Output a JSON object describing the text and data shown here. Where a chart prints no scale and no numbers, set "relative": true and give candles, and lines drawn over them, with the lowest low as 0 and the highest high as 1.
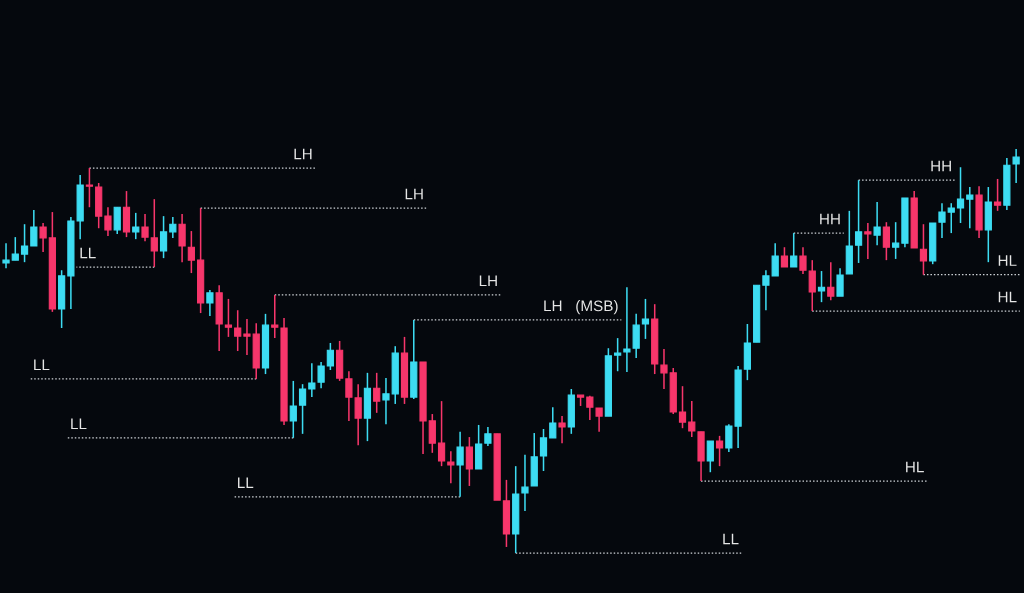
{
  "chart_data": {
    "type": "candlestick",
    "relative": true,
    "categories": [
      null,
      null,
      null,
      null,
      null,
      null,
      null,
      null,
      null,
      null,
      null,
      null,
      null,
      null,
      null,
      null,
      null,
      null,
      null,
      null,
      null,
      null,
      null,
      null,
      null,
      null,
      null,
      null,
      null,
      null,
      null,
      null,
      null,
      null,
      null,
      null,
      null,
      null,
      null,
      null,
      null,
      null,
      null,
      null,
      null,
      null,
      null,
      null,
      null,
      null,
      null,
      null,
      null,
      null,
      null,
      null,
      null,
      null,
      null,
      null,
      null,
      null,
      null,
      null,
      null,
      null,
      null,
      null,
      null,
      null,
      null,
      null,
      null,
      null,
      null,
      null,
      null,
      null,
      null,
      null,
      null,
      null,
      null,
      null,
      null,
      null,
      null,
      null,
      null,
      null,
      null,
      null,
      null,
      null,
      null,
      null,
      null,
      null,
      null,
      null,
      null,
      null,
      null,
      null,
      null,
      null,
      null,
      null,
      null,
      null
    ],
    "ohlc": [
      [
        0.718,
        0.767,
        0.705,
        0.725
      ],
      [
        0.725,
        0.782,
        0.725,
        0.74
      ],
      [
        0.74,
        0.814,
        0.72,
        0.76
      ],
      [
        0.76,
        0.849,
        0.76,
        0.807
      ],
      [
        0.807,
        0.817,
        0.745,
        0.78
      ],
      [
        0.78,
        0.844,
        0.597,
        0.604
      ],
      [
        0.604,
        0.7,
        0.557,
        0.686
      ],
      [
        0.686,
        0.832,
        0.604,
        0.822
      ],
      [
        0.822,
        0.936,
        0.777,
        0.911
      ],
      [
        0.911,
        0.953,
        0.856,
        0.908
      ],
      [
        0.906,
        0.916,
        0.804,
        0.834
      ],
      [
        0.834,
        0.856,
        0.785,
        0.8
      ],
      [
        0.8,
        0.856,
        0.79,
        0.856
      ],
      [
        0.856,
        0.896,
        0.782,
        0.795
      ],
      [
        0.795,
        0.842,
        0.777,
        0.807
      ],
      [
        0.807,
        0.839,
        0.772,
        0.782
      ],
      [
        0.78,
        0.876,
        0.708,
        0.748
      ],
      [
        0.748,
        0.834,
        0.73,
        0.795
      ],
      [
        0.795,
        0.832,
        0.78,
        0.814
      ],
      [
        0.814,
        0.839,
        0.72,
        0.76
      ],
      [
        0.757,
        0.797,
        0.693,
        0.725
      ],
      [
        0.725,
        0.854,
        0.594,
        0.619
      ],
      [
        0.619,
        0.651,
        0.587,
        0.644
      ],
      [
        0.644,
        0.663,
        0.5,
        0.567
      ],
      [
        0.564,
        0.629,
        0.535,
        0.559
      ],
      [
        0.557,
        0.601,
        0.5,
        0.537
      ],
      [
        0.542,
        0.579,
        0.49,
        0.537
      ],
      [
        0.542,
        0.569,
        0.431,
        0.458
      ],
      [
        0.458,
        0.592,
        0.443,
        0.564
      ],
      [
        0.564,
        0.639,
        0.532,
        0.559
      ],
      [
        0.557,
        0.582,
        0.317,
        0.327
      ],
      [
        0.327,
        0.426,
        0.285,
        0.364
      ],
      [
        0.366,
        0.418,
        0.295,
        0.406
      ],
      [
        0.406,
        0.47,
        0.386,
        0.421
      ],
      [
        0.423,
        0.473,
        0.408,
        0.463
      ],
      [
        0.463,
        0.52,
        0.453,
        0.502
      ],
      [
        0.502,
        0.525,
        0.426,
        0.433
      ],
      [
        0.431,
        0.45,
        0.327,
        0.386
      ],
      [
        0.384,
        0.418,
        0.267,
        0.334
      ],
      [
        0.334,
        0.446,
        0.277,
        0.408
      ],
      [
        0.408,
        0.446,
        0.347,
        0.376
      ],
      [
        0.379,
        0.433,
        0.319,
        0.394
      ],
      [
        0.394,
        0.512,
        0.369,
        0.495
      ],
      [
        0.495,
        0.535,
        0.369,
        0.386
      ],
      [
        0.386,
        0.577,
        0.381,
        0.473
      ],
      [
        0.473,
        0.473,
        0.245,
        0.327
      ],
      [
        0.327,
        0.344,
        0.248,
        0.272
      ],
      [
        0.272,
        0.376,
        0.215,
        0.228
      ],
      [
        0.225,
        0.252,
        0.173,
        0.218
      ],
      [
        0.218,
        0.3,
        0.139,
        0.262
      ],
      [
        0.262,
        0.287,
        0.166,
        0.208
      ],
      [
        0.208,
        0.317,
        0.208,
        0.27
      ],
      [
        0.272,
        0.312,
        0.265,
        0.295
      ],
      [
        0.295,
        0.295,
        0.131,
        0.131
      ],
      [
        0.129,
        0.181,
        0.015,
        0.047
      ],
      [
        0.047,
        0.215,
        0,
        0.146
      ],
      [
        0.149,
        0.243,
        0.104,
        0.163
      ],
      [
        0.166,
        0.297,
        0.166,
        0.238
      ],
      [
        0.24,
        0.307,
        0.203,
        0.285
      ],
      [
        0.285,
        0.361,
        0.285,
        0.322
      ],
      [
        0.322,
        0.339,
        0.272,
        0.312
      ],
      [
        0.312,
        0.406,
        0.295,
        0.391
      ],
      [
        0.391,
        0.391,
        0.364,
        0.386
      ],
      [
        0.386,
        0.389,
        0.329,
        0.361
      ],
      [
        0.359,
        0.359,
        0.3,
        0.339
      ],
      [
        0.339,
        0.507,
        0.339,
        0.488
      ],
      [
        0.49,
        0.532,
        0.45,
        0.495
      ],
      [
        0.498,
        0.658,
        0.448,
        0.505
      ],
      [
        0.507,
        0.592,
        0.483,
        0.564
      ],
      [
        0.567,
        0.629,
        0.53,
        0.579
      ],
      [
        0.579,
        0.616,
        0.443,
        0.468
      ],
      [
        0.465,
        0.505,
        0.406,
        0.446
      ],
      [
        0.446,
        0.458,
        0.344,
        0.349
      ],
      [
        0.349,
        0.413,
        0.309,
        0.324
      ],
      [
        0.324,
        0.376,
        0.287,
        0.302
      ],
      [
        0.3,
        0.3,
        0.178,
        0.228
      ],
      [
        0.228,
        0.277,
        0.2,
        0.277
      ],
      [
        0.277,
        0.29,
        0.215,
        0.26
      ],
      [
        0.26,
        0.319,
        0.25,
        0.314
      ],
      [
        0.314,
        0.463,
        0.26,
        0.453
      ],
      [
        0.455,
        0.567,
        0.428,
        0.52
      ],
      [
        0.522,
        0.663,
        0.522,
        0.663
      ],
      [
        0.663,
        0.7,
        0.601,
        0.686
      ],
      [
        0.686,
        0.767,
        0.686,
        0.735
      ],
      [
        0.735,
        0.757,
        0.708,
        0.708
      ],
      [
        0.708,
        0.792,
        0.708,
        0.735
      ],
      [
        0.735,
        0.757,
        0.691,
        0.7
      ],
      [
        0.698,
        0.725,
        0.599,
        0.646
      ],
      [
        0.649,
        0.698,
        0.621,
        0.658
      ],
      [
        0.658,
        0.72,
        0.626,
        0.636
      ],
      [
        0.636,
        0.705,
        0.636,
        0.688
      ],
      [
        0.691,
        0.847,
        0.691,
        0.76
      ],
      [
        0.762,
        0.923,
        0.718,
        0.795
      ],
      [
        0.795,
        0.817,
        0.728,
        0.79
      ],
      [
        0.787,
        0.869,
        0.762,
        0.807
      ],
      [
        0.807,
        0.819,
        0.725,
        0.757
      ],
      [
        0.757,
        0.819,
        0.728,
        0.767
      ],
      [
        0.767,
        0.879,
        0.757,
        0.879
      ],
      [
        0.879,
        0.896,
        0.755,
        0.755
      ],
      [
        0.752,
        0.814,
        0.689,
        0.723
      ],
      [
        0.723,
        0.817,
        0.715,
        0.817
      ],
      [
        0.819,
        0.866,
        0.78,
        0.844
      ],
      [
        0.844,
        0.866,
        0.792,
        0.854
      ],
      [
        0.854,
        0.955,
        0.817,
        0.876
      ],
      [
        0.876,
        0.906,
        0.804,
        0.886
      ],
      [
        0.886,
        0.908,
        0.78,
        0.8
      ],
      [
        0.8,
        0.906,
        0.72,
        0.869
      ],
      [
        0.869,
        0.926,
        0.847,
        0.861
      ],
      [
        0.861,
        0.978,
        0.849,
        0.96
      ],
      [
        0.963,
        1,
        0.916,
        0.98
      ]
    ],
    "colors": [
      "#3ddcf2",
      "#3ddcf2",
      "#3ddcf2",
      "#3ddcf2",
      "#f7366b",
      "#f7366b",
      "#3ddcf2",
      "#3ddcf2",
      "#3ddcf2",
      "#f7366b",
      "#f7366b",
      "#f7366b",
      "#3ddcf2",
      "#f7366b",
      "#3ddcf2",
      "#f7366b",
      "#f7366b",
      "#3ddcf2",
      "#3ddcf2",
      "#f7366b",
      "#f7366b",
      "#f7366b",
      "#3ddcf2",
      "#f7366b",
      "#f7366b",
      "#f7366b",
      "#f7366b",
      "#f7366b",
      "#3ddcf2",
      "#f7366b",
      "#f7366b",
      "#3ddcf2",
      "#3ddcf2",
      "#3ddcf2",
      "#3ddcf2",
      "#3ddcf2",
      "#f7366b",
      "#f7366b",
      "#f7366b",
      "#3ddcf2",
      "#f7366b",
      "#3ddcf2",
      "#3ddcf2",
      "#f7366b",
      "#3ddcf2",
      "#f7366b",
      "#f7366b",
      "#f7366b",
      "#f7366b",
      "#3ddcf2",
      "#f7366b",
      "#3ddcf2",
      "#3ddcf2",
      "#f7366b",
      "#f7366b",
      "#3ddcf2",
      "#3ddcf2",
      "#3ddcf2",
      "#3ddcf2",
      "#3ddcf2",
      "#f7366b",
      "#3ddcf2",
      "#f7366b",
      "#f7366b",
      "#f7366b",
      "#3ddcf2",
      "#3ddcf2",
      "#3ddcf2",
      "#3ddcf2",
      "#3ddcf2",
      "#f7366b",
      "#f7366b",
      "#f7366b",
      "#f7366b",
      "#f7366b",
      "#f7366b",
      "#3ddcf2",
      "#f7366b",
      "#3ddcf2",
      "#3ddcf2",
      "#3ddcf2",
      "#3ddcf2",
      "#3ddcf2",
      "#3ddcf2",
      "#f7366b",
      "#3ddcf2",
      "#f7366b",
      "#f7366b",
      "#3ddcf2",
      "#f7366b",
      "#3ddcf2",
      "#3ddcf2",
      "#3ddcf2",
      "#f7366b",
      "#3ddcf2",
      "#f7366b",
      "#3ddcf2",
      "#3ddcf2",
      "#f7366b",
      "#f7366b",
      "#3ddcf2",
      "#3ddcf2",
      "#3ddcf2",
      "#3ddcf2",
      "#3ddcf2",
      "#f7366b",
      "#3ddcf2",
      "#f7366b",
      "#3ddcf2",
      "#3ddcf2"
    ],
    "ref_lines": [
      {
        "axis": "y",
        "value": 0.953,
        "label": "LH",
        "color": "#cfd3d8",
        "line_style": "dotted"
      },
      {
        "axis": "y",
        "value": 0.708,
        "label": "LL",
        "color": "#cfd3d8",
        "line_style": "dotted"
      },
      {
        "axis": "y",
        "value": 0.854,
        "label": "LH",
        "color": "#cfd3d8",
        "line_style": "dotted"
      },
      {
        "axis": "y",
        "value": 0.431,
        "label": "LL",
        "color": "#cfd3d8",
        "line_style": "dotted"
      },
      {
        "axis": "y",
        "value": 0.639,
        "label": "LH",
        "color": "#cfd3d8",
        "line_style": "dotted"
      },
      {
        "axis": "y",
        "value": 0.285,
        "label": "LL",
        "color": "#cfd3d8",
        "line_style": "dotted"
      },
      {
        "axis": "y",
        "value": 0.577,
        "label": "LH   (MSB)",
        "color": "#cfd3d8",
        "line_style": "dotted"
      },
      {
        "axis": "y",
        "value": 0.139,
        "label": "LL",
        "color": "#cfd3d8",
        "line_style": "dotted"
      },
      {
        "axis": "y",
        "value": 0,
        "label": "LL",
        "color": "#cfd3d8",
        "line_style": "dotted"
      },
      {
        "axis": "y",
        "value": 0.178,
        "label": "HL",
        "color": "#cfd3d8",
        "line_style": "dotted"
      },
      {
        "axis": "y",
        "value": 0.792,
        "label": "HH",
        "color": "#cfd3d8",
        "line_style": "dotted"
      },
      {
        "axis": "y",
        "value": 0.599,
        "label": "HL",
        "color": "#cfd3d8",
        "line_style": "dotted"
      },
      {
        "axis": "y",
        "value": 0.923,
        "label": "HH",
        "color": "#cfd3d8",
        "line_style": "dotted"
      },
      {
        "axis": "y",
        "value": 0.689,
        "label": "HL",
        "color": "#cfd3d8",
        "line_style": "dotted"
      }
    ]
  }
}
